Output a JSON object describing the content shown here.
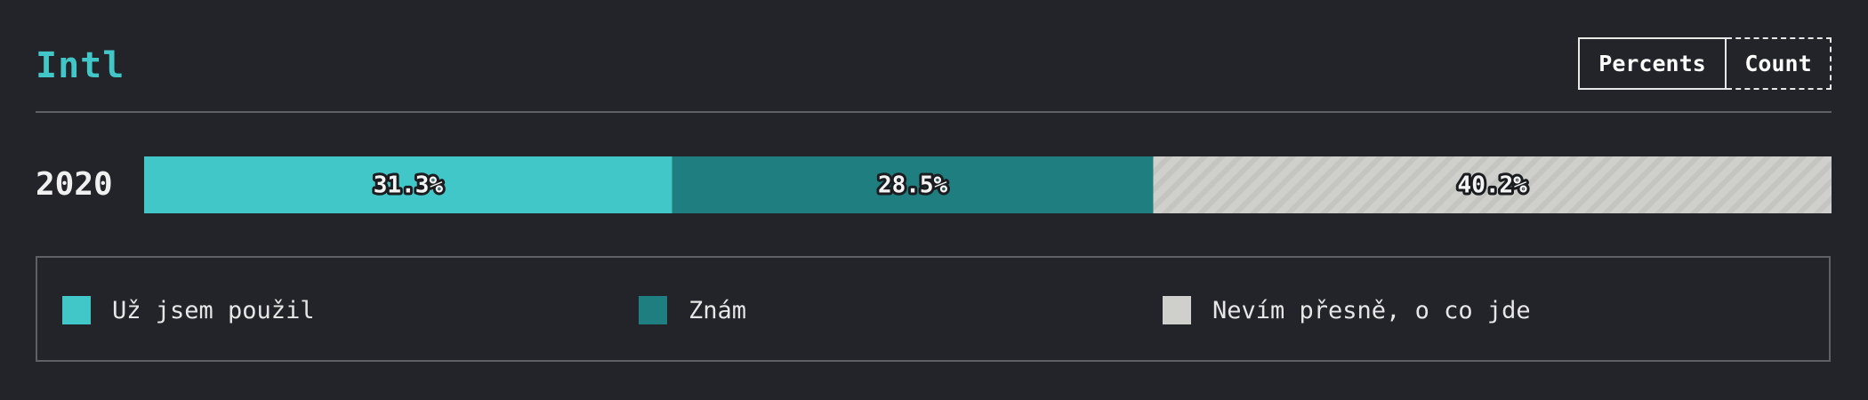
{
  "title": "Intl",
  "toggle": {
    "percents_label": "Percents",
    "count_label": "Count",
    "active": "Percents"
  },
  "chart_data": {
    "type": "bar",
    "orientation": "horizontal",
    "stacked": true,
    "normalized": true,
    "categories": [
      "2020"
    ],
    "series": [
      {
        "name": "Už jsem použil",
        "values": [
          31.3
        ],
        "label": "31.3%",
        "color": "#41c7c7",
        "pattern": "solid"
      },
      {
        "name": "Znám",
        "values": [
          28.5
        ],
        "label": "28.5%",
        "color": "#1f7f80",
        "pattern": "solid"
      },
      {
        "name": "Nevím přesně, o co jde",
        "values": [
          40.2
        ],
        "label": "40.2%",
        "color": "#cfcfcb",
        "pattern": "diagonal-stripes"
      }
    ],
    "xlim": [
      0,
      100
    ],
    "unit": "%",
    "legend_position": "bottom"
  }
}
